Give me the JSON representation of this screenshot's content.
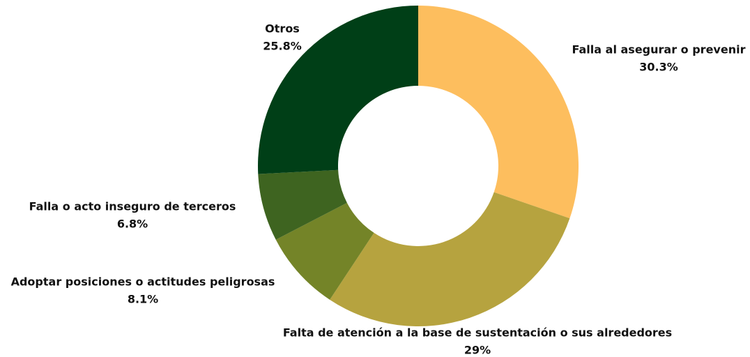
{
  "chart_data": {
    "type": "donut",
    "categories": [
      "Falla al asegurar o prevenir",
      "Falta de atención a la base de sustentación o sus alrededores",
      "Adoptar posiciones o actitudes peligrosas",
      "Falla o acto inseguro de terceros",
      "Otros"
    ],
    "values": [
      30.3,
      29,
      8.1,
      6.8,
      25.8
    ],
    "value_labels": [
      "30.3%",
      "29%",
      "8.1%",
      "6.8%",
      "25.8%"
    ],
    "colors": [
      "#fdbe5e",
      "#b6a33f",
      "#748428",
      "#3e6420",
      "#003f17"
    ]
  }
}
